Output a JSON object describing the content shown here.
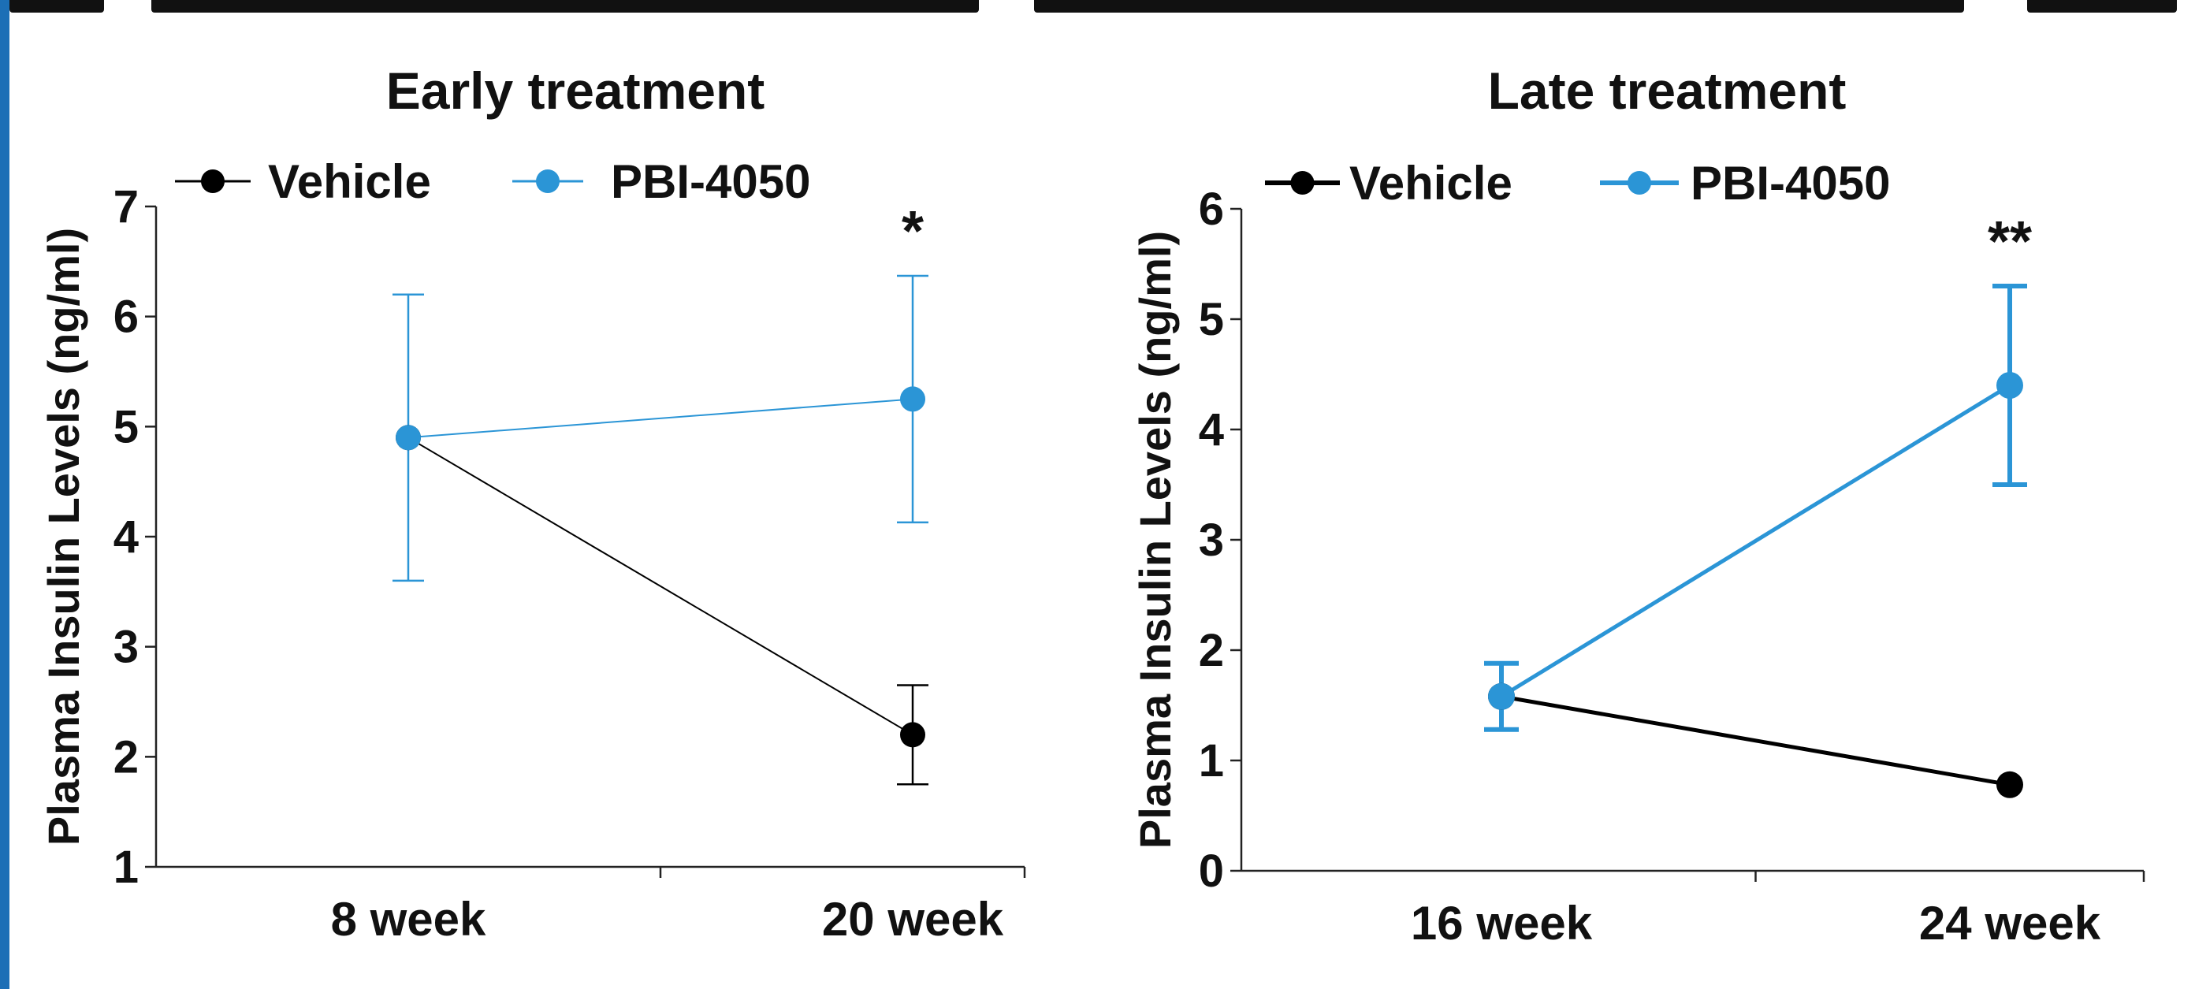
{
  "colors": {
    "vehicle": "#000000",
    "pbi": "#2b95d6",
    "frame": "#1c6fb6"
  },
  "chart_data": [
    {
      "type": "line",
      "title": "Early treatment",
      "ylabel": "Plasma Insulin Levels (ng/ml)",
      "xlabel": "",
      "categories": [
        "8 week",
        "20 week"
      ],
      "ylim": [
        1,
        7
      ],
      "yticks": [
        1,
        2,
        3,
        4,
        5,
        6,
        7
      ],
      "legend_position": "top",
      "series": [
        {
          "name": "Vehicle",
          "color": "#000000",
          "values": [
            4.9,
            2.2
          ],
          "error": [
            null,
            0.45
          ]
        },
        {
          "name": "PBI-4050",
          "color": "#2b95d6",
          "values": [
            4.9,
            5.25
          ],
          "error": [
            1.3,
            1.12
          ]
        }
      ],
      "annotations": [
        {
          "category": "20 week",
          "text": "*"
        }
      ]
    },
    {
      "type": "line",
      "title": "Late treatment",
      "ylabel": "Plasma Insulin Levels (ng/ml)",
      "xlabel": "",
      "categories": [
        "16 week",
        "24 week"
      ],
      "ylim": [
        0,
        6
      ],
      "yticks": [
        0,
        1,
        2,
        3,
        4,
        5,
        6
      ],
      "legend_position": "top",
      "series": [
        {
          "name": "Vehicle",
          "color": "#000000",
          "values": [
            1.58,
            0.78
          ],
          "error": [
            null,
            null
          ]
        },
        {
          "name": "PBI-4050",
          "color": "#2b95d6",
          "values": [
            1.58,
            4.4
          ],
          "error": [
            0.3,
            0.9
          ]
        }
      ],
      "annotations": [
        {
          "category": "24 week",
          "text": "**"
        }
      ]
    }
  ]
}
